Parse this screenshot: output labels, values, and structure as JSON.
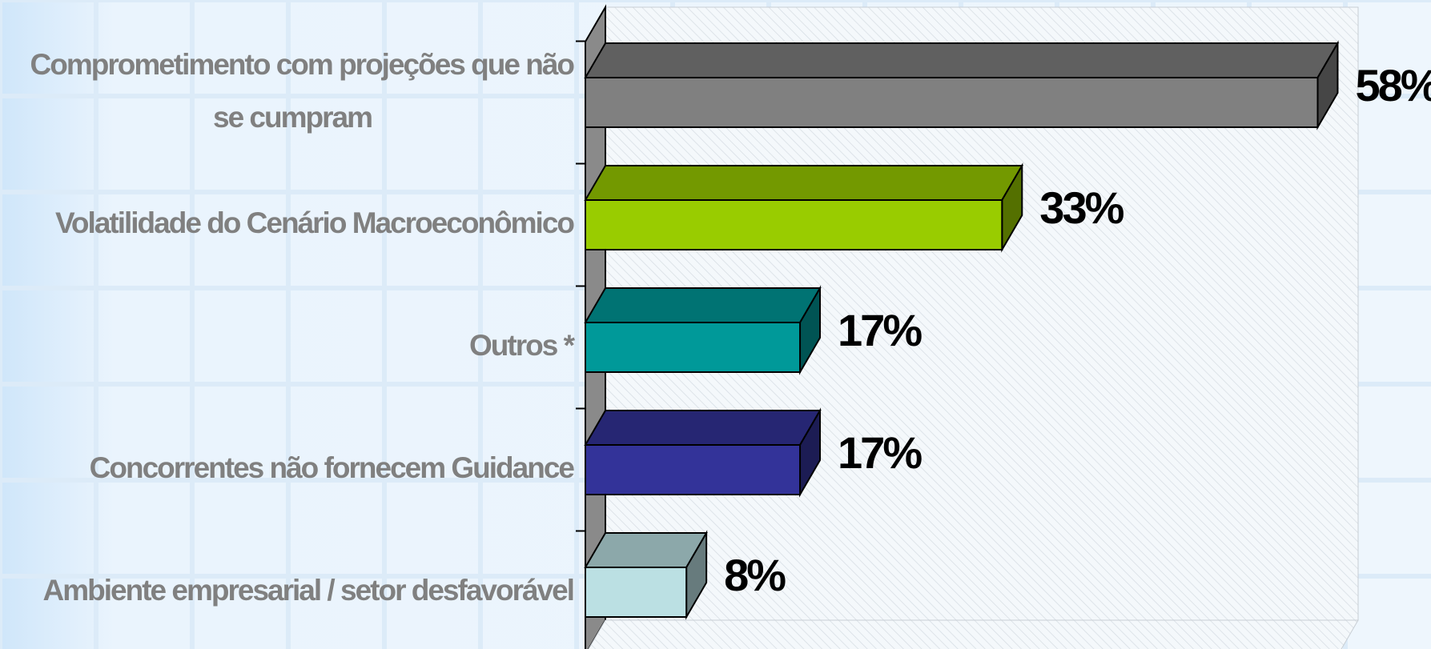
{
  "chart_data": {
    "type": "bar",
    "orientation": "horizontal",
    "three_d": true,
    "categories": [
      "Comprometimento com projeções que não se cumpram",
      "Volatilidade do Cenário Macroeconômico",
      "Outros *",
      "Concorrentes não fornecem Guidance",
      "Ambiente empresarial / setor desfavorável"
    ],
    "values": [
      58,
      33,
      17,
      17,
      8
    ],
    "value_labels": [
      "58%",
      "33%",
      "17%",
      "17%",
      "8%"
    ],
    "colors": [
      "#808080",
      "#99cc00",
      "#009999",
      "#333399",
      "#bbe0e3"
    ],
    "xlim": [
      0,
      60
    ]
  }
}
